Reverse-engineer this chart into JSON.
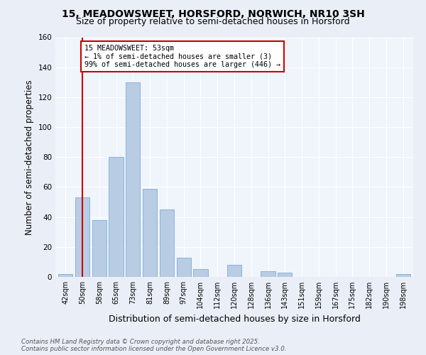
{
  "title": "15, MEADOWSWEET, HORSFORD, NORWICH, NR10 3SH",
  "subtitle": "Size of property relative to semi-detached houses in Horsford",
  "xlabel": "Distribution of semi-detached houses by size in Horsford",
  "ylabel": "Number of semi-detached properties",
  "categories": [
    "42sqm",
    "50sqm",
    "58sqm",
    "65sqm",
    "73sqm",
    "81sqm",
    "89sqm",
    "97sqm",
    "104sqm",
    "112sqm",
    "120sqm",
    "128sqm",
    "136sqm",
    "143sqm",
    "151sqm",
    "159sqm",
    "167sqm",
    "175sqm",
    "182sqm",
    "190sqm",
    "198sqm"
  ],
  "values": [
    2,
    53,
    38,
    80,
    130,
    59,
    45,
    13,
    5,
    0,
    8,
    0,
    4,
    3,
    0,
    0,
    0,
    0,
    0,
    0,
    2
  ],
  "bar_color": "#b8cce4",
  "bar_edge_color": "#7bafd4",
  "highlight_label": "15 MEADOWSWEET: 53sqm",
  "annotation_line1": "← 1% of semi-detached houses are smaller (3)",
  "annotation_line2": "99% of semi-detached houses are larger (446) →",
  "annotation_box_color": "#ffffff",
  "annotation_box_edge": "#cc0000",
  "vline_color": "#cc0000",
  "vline_index": 1,
  "ylim": [
    0,
    160
  ],
  "yticks": [
    0,
    20,
    40,
    60,
    80,
    100,
    120,
    140,
    160
  ],
  "bg_color": "#eaeff7",
  "plot_bg_color": "#f0f4fb",
  "footer": "Contains HM Land Registry data © Crown copyright and database right 2025.\nContains public sector information licensed under the Open Government Licence v3.0.",
  "title_fontsize": 10,
  "subtitle_fontsize": 9,
  "axis_label_fontsize": 8.5,
  "tick_fontsize": 7
}
